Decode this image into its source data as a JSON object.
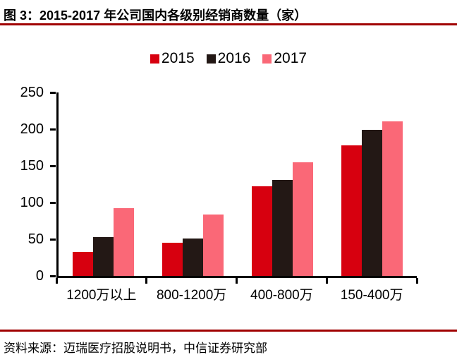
{
  "figure": {
    "title": "图 3：2015-2017 年公司国内各级别经销商数量（家）",
    "source": "资料来源：迈瑞医疗招股说明书，中信证券研究部"
  },
  "colors": {
    "rule": "#A00000",
    "axis": "#000000",
    "background": "#FFFFFF",
    "series_2015": "#D7000F",
    "series_2016": "#231815",
    "series_2017": "#FA6877"
  },
  "chart_data": {
    "type": "bar",
    "title": "",
    "xlabel": "",
    "ylabel": "",
    "categories": [
      "1200万以上",
      "800-1200万",
      "400-800万",
      "150-400万"
    ],
    "series": [
      {
        "name": "2015",
        "color": "#D7000F",
        "values": [
          33,
          45,
          122,
          178
        ]
      },
      {
        "name": "2016",
        "color": "#231815",
        "values": [
          53,
          51,
          131,
          199
        ]
      },
      {
        "name": "2017",
        "color": "#FA6877",
        "values": [
          92,
          84,
          155,
          211
        ]
      }
    ],
    "ylim": [
      0,
      250
    ],
    "yticks": [
      0,
      50,
      100,
      150,
      200,
      250
    ],
    "legend_position": "top",
    "grid": false
  }
}
